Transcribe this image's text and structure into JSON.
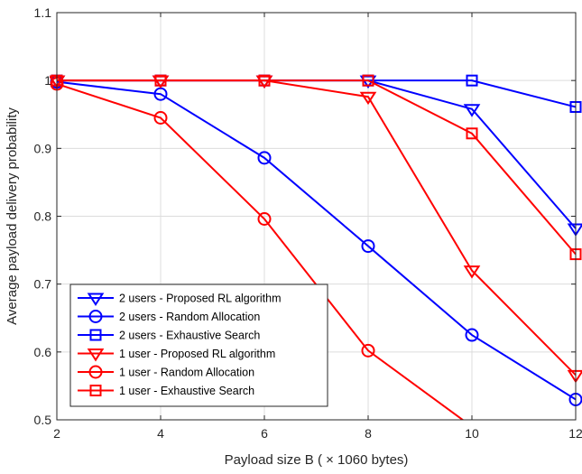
{
  "chart_data": {
    "type": "line",
    "title": "",
    "xlabel": "Payload size B ( × 1060 bytes)",
    "ylabel": "Average payload delivery probability",
    "xlim": [
      2,
      12
    ],
    "ylim": [
      0.5,
      1.1
    ],
    "xticks": [
      2,
      4,
      6,
      8,
      10,
      12
    ],
    "xtick_labels": [
      "2",
      "4",
      "6",
      "8",
      "10",
      "12"
    ],
    "yticks": [
      0.5,
      0.6,
      0.7,
      0.8,
      0.9,
      1.0,
      1.1
    ],
    "ytick_labels": [
      "0.5",
      "0.6",
      "0.7",
      "0.8",
      "0.9",
      "1",
      "1.1"
    ],
    "grid": true,
    "legend_position": "bottom-left",
    "colors": {
      "blue": "#0000ff",
      "red": "#ff0000"
    },
    "series": [
      {
        "name": "2 users - Proposed RL algorithm",
        "color": "#0000ff",
        "marker": "triangle-down",
        "x": [
          2,
          4,
          6,
          8,
          10,
          12
        ],
        "y": [
          1.0,
          1.0,
          1.0,
          1.0,
          0.958,
          0.782
        ]
      },
      {
        "name": "2 users - Random Allocation",
        "color": "#0000ff",
        "marker": "circle",
        "x": [
          2,
          4,
          6,
          8,
          10,
          12
        ],
        "y": [
          0.998,
          0.98,
          0.886,
          0.756,
          0.625,
          0.53
        ]
      },
      {
        "name": "2 users - Exhaustive Search",
        "color": "#0000ff",
        "marker": "square",
        "x": [
          2,
          4,
          6,
          8,
          10,
          12
        ],
        "y": [
          1.0,
          1.0,
          1.0,
          1.0,
          1.0,
          0.961
        ]
      },
      {
        "name": "1 user - Proposed RL algorithm",
        "color": "#ff0000",
        "marker": "triangle-down",
        "x": [
          2,
          4,
          6,
          8,
          10,
          12
        ],
        "y": [
          1.0,
          1.0,
          1.0,
          0.976,
          0.72,
          0.566
        ]
      },
      {
        "name": "1 user - Random Allocation",
        "color": "#ff0000",
        "marker": "circle",
        "x": [
          2,
          4,
          6,
          8,
          10
        ],
        "y": [
          0.995,
          0.945,
          0.796,
          0.602,
          0.49
        ]
      },
      {
        "name": "1 user - Exhaustive Search",
        "color": "#ff0000",
        "marker": "square",
        "x": [
          2,
          4,
          6,
          8,
          10,
          12
        ],
        "y": [
          1.0,
          1.0,
          1.0,
          1.0,
          0.922,
          0.744
        ]
      }
    ]
  }
}
